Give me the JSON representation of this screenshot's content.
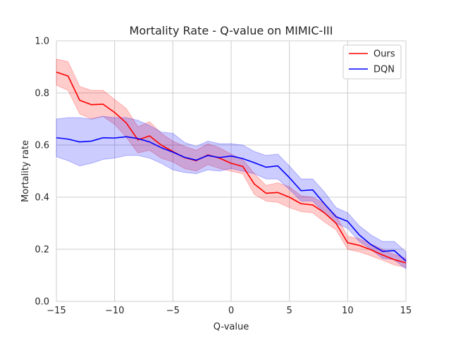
{
  "chart_data": {
    "type": "line",
    "title": "Mortality Rate - Q-value on MIMIC-III",
    "xlabel": "Q-value",
    "ylabel": "Mortality rate",
    "xlim": [
      -15,
      15
    ],
    "ylim": [
      0.0,
      1.0
    ],
    "xticks": [
      -15,
      -10,
      -5,
      0,
      5,
      10,
      15
    ],
    "xtick_labels": [
      "−15",
      "−10",
      "−5",
      "0",
      "5",
      "10",
      "15"
    ],
    "yticks": [
      0.0,
      0.2,
      0.4,
      0.6,
      0.8,
      1.0
    ],
    "ytick_labels": [
      "0.0",
      "0.2",
      "0.4",
      "0.6",
      "0.8",
      "1.0"
    ],
    "grid": true,
    "legend_position": "top-right",
    "x": [
      -15,
      -14,
      -13,
      -12,
      -11,
      -10,
      -9,
      -8,
      -7,
      -6,
      -5,
      -4,
      -3,
      -2,
      -1,
      0,
      1,
      2,
      3,
      4,
      5,
      6,
      7,
      8,
      9,
      10,
      11,
      12,
      13,
      14,
      15
    ],
    "series": [
      {
        "name": "Ours",
        "color": "#ff0000",
        "band_color": "#ff0000",
        "values": [
          0.88,
          0.865,
          0.772,
          0.755,
          0.757,
          0.725,
          0.685,
          0.62,
          0.635,
          0.6,
          0.575,
          0.552,
          0.54,
          0.562,
          0.55,
          0.53,
          0.518,
          0.45,
          0.415,
          0.418,
          0.4,
          0.375,
          0.37,
          0.34,
          0.3,
          0.225,
          0.215,
          0.198,
          0.178,
          0.16,
          0.148
        ],
        "lower": [
          0.83,
          0.81,
          0.72,
          0.7,
          0.71,
          0.68,
          0.63,
          0.57,
          0.58,
          0.55,
          0.535,
          0.51,
          0.5,
          0.525,
          0.51,
          0.5,
          0.49,
          0.41,
          0.385,
          0.38,
          0.36,
          0.345,
          0.34,
          0.305,
          0.275,
          0.2,
          0.19,
          0.175,
          0.158,
          0.14,
          0.13
        ],
        "upper": [
          0.93,
          0.92,
          0.825,
          0.81,
          0.81,
          0.775,
          0.74,
          0.67,
          0.69,
          0.645,
          0.615,
          0.595,
          0.58,
          0.605,
          0.59,
          0.565,
          0.545,
          0.49,
          0.445,
          0.455,
          0.44,
          0.405,
          0.4,
          0.375,
          0.33,
          0.25,
          0.24,
          0.22,
          0.2,
          0.18,
          0.165
        ]
      },
      {
        "name": "DQN",
        "color": "#0000ff",
        "band_color": "#0000ff",
        "values": [
          0.628,
          0.623,
          0.612,
          0.615,
          0.628,
          0.627,
          0.632,
          0.625,
          0.612,
          0.59,
          0.573,
          0.553,
          0.542,
          0.56,
          0.552,
          0.558,
          0.548,
          0.532,
          0.515,
          0.52,
          0.475,
          0.425,
          0.428,
          0.375,
          0.325,
          0.307,
          0.255,
          0.218,
          0.192,
          0.195,
          0.155
        ],
        "lower": [
          0.555,
          0.54,
          0.52,
          0.53,
          0.545,
          0.55,
          0.56,
          0.56,
          0.55,
          0.53,
          0.505,
          0.495,
          0.49,
          0.505,
          0.5,
          0.51,
          0.5,
          0.49,
          0.47,
          0.47,
          0.43,
          0.385,
          0.385,
          0.34,
          0.3,
          0.28,
          0.23,
          0.2,
          0.165,
          0.16,
          0.125
        ],
        "upper": [
          0.7,
          0.705,
          0.705,
          0.7,
          0.71,
          0.705,
          0.705,
          0.695,
          0.675,
          0.65,
          0.645,
          0.61,
          0.595,
          0.615,
          0.605,
          0.605,
          0.6,
          0.575,
          0.56,
          0.565,
          0.52,
          0.47,
          0.47,
          0.42,
          0.36,
          0.34,
          0.29,
          0.255,
          0.23,
          0.23,
          0.19
        ]
      }
    ]
  }
}
